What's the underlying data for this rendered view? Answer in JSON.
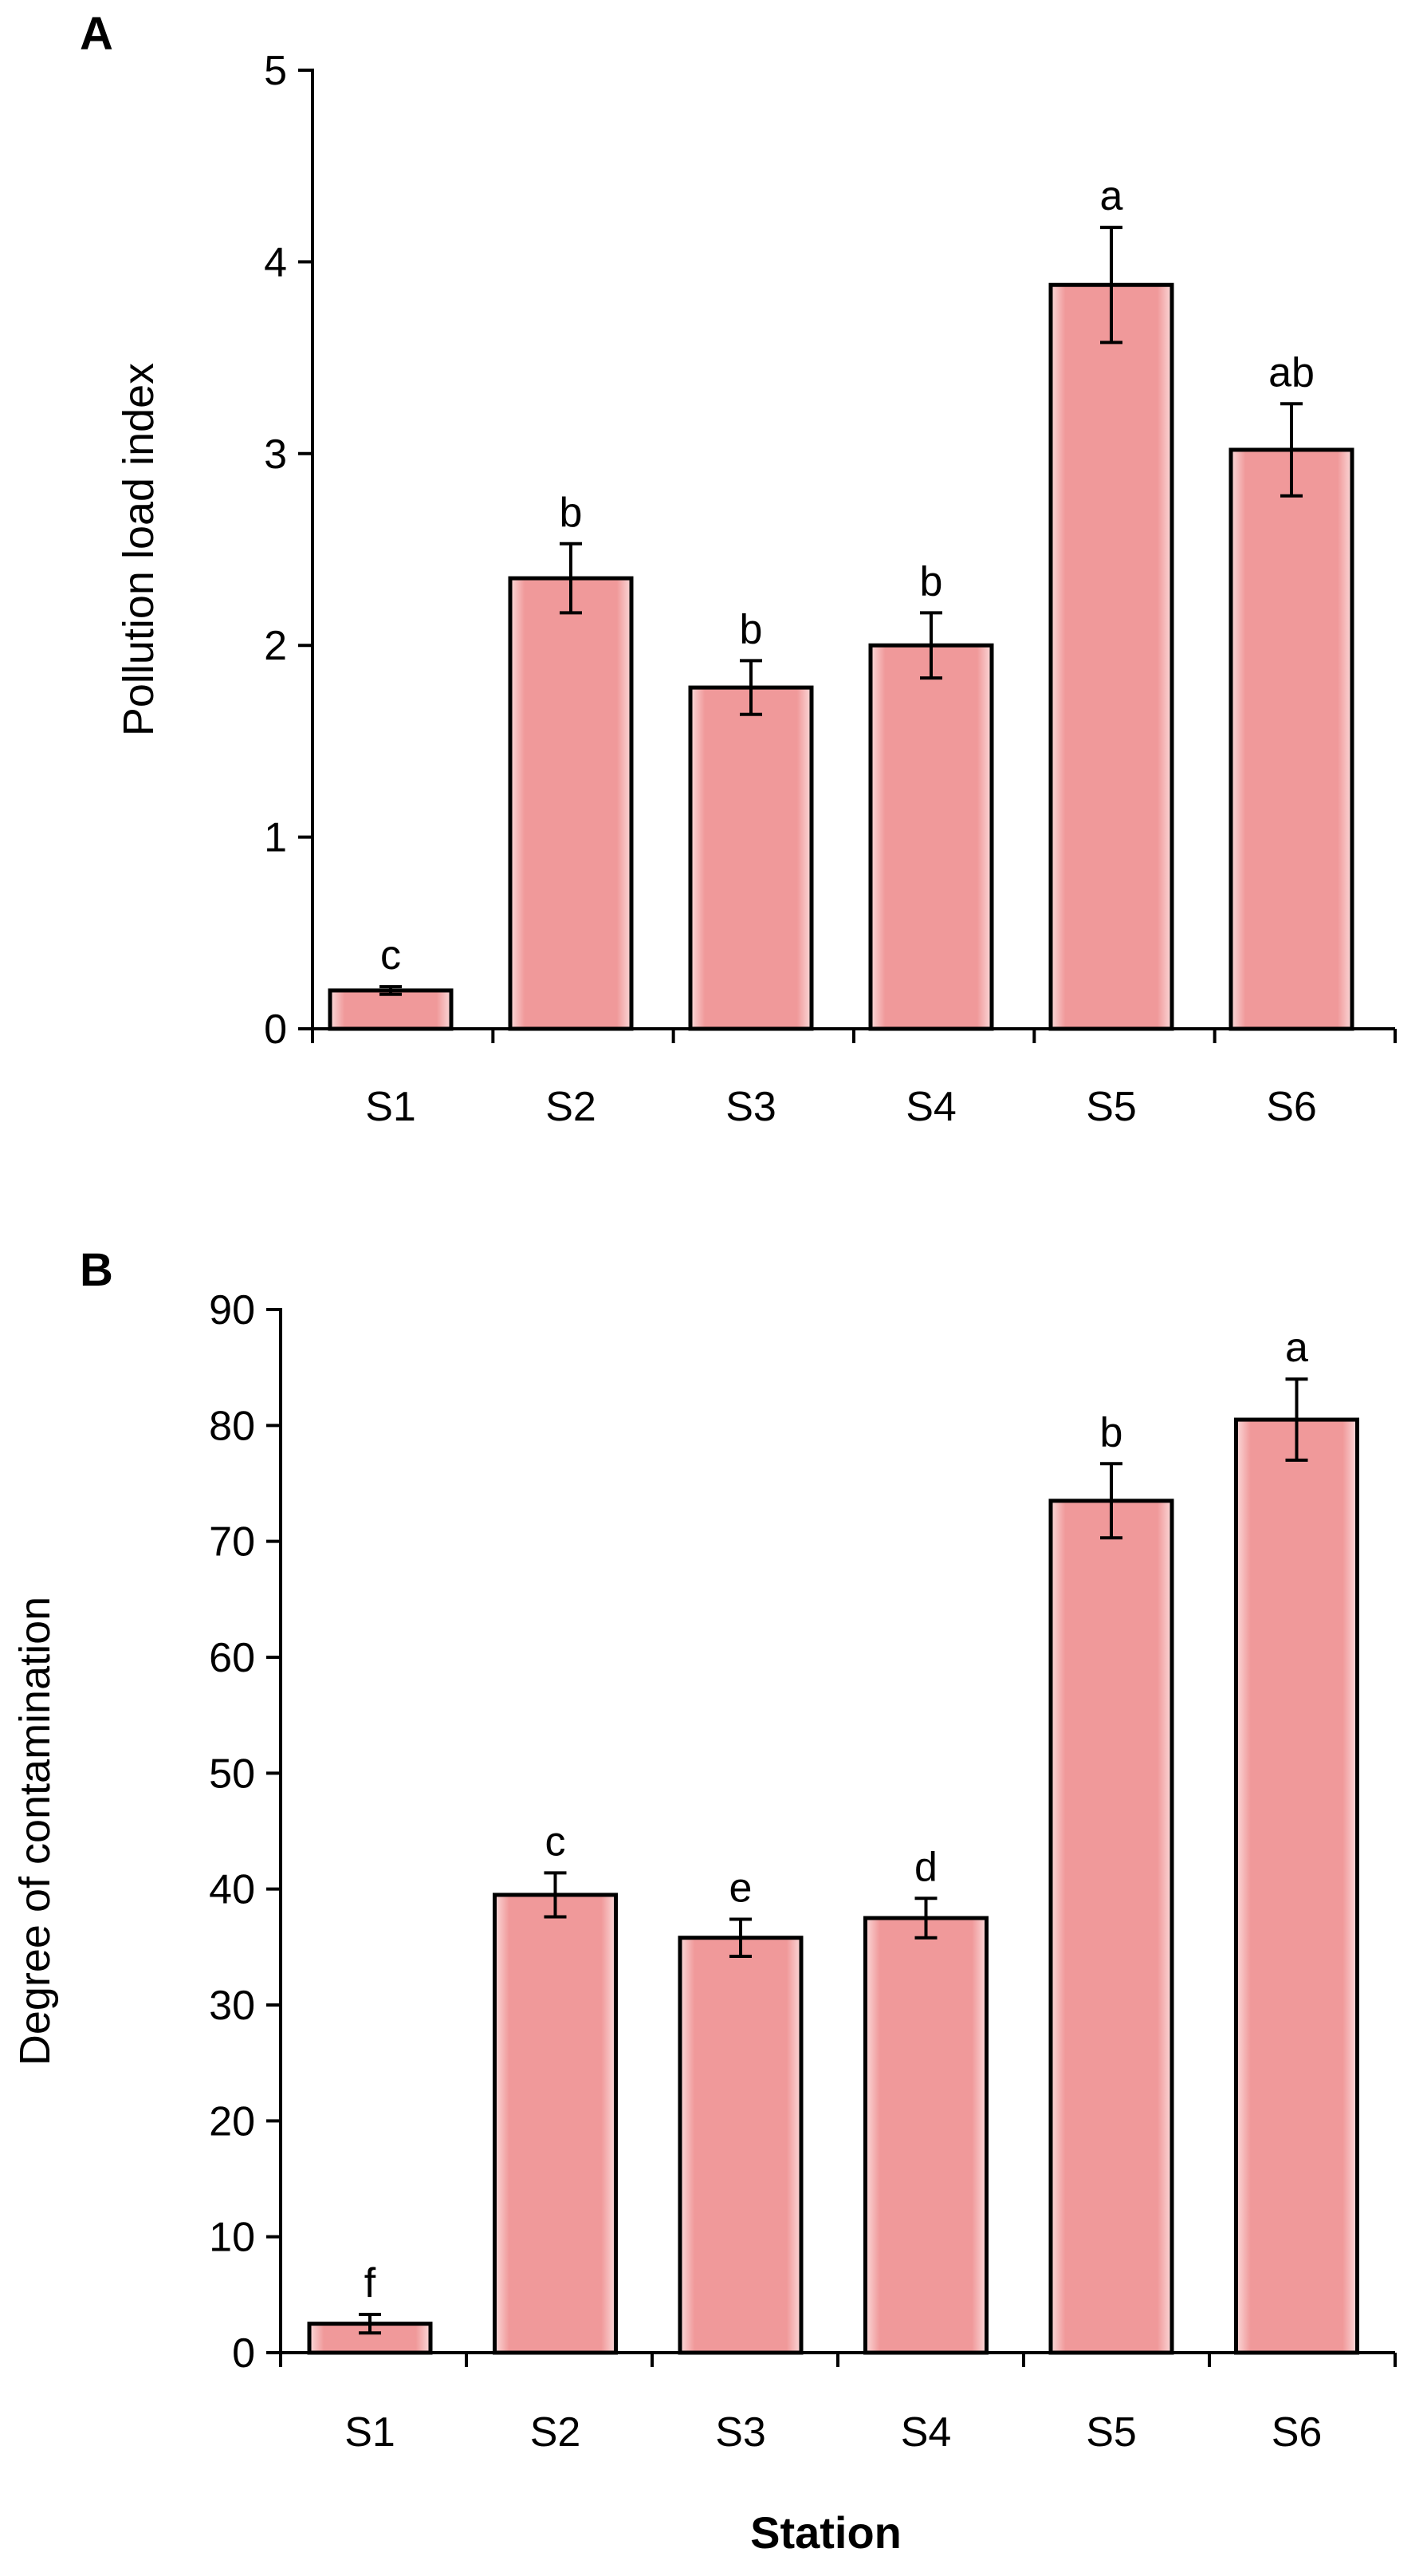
{
  "chart_data": [
    {
      "panel": "A",
      "type": "bar",
      "title": "",
      "xlabel": "",
      "ylabel": "Pollution load index",
      "ylim": [
        0,
        5
      ],
      "yticks": [
        "0",
        "1",
        "2",
        "3",
        "4",
        "5"
      ],
      "categories": [
        "S1",
        "S2",
        "S3",
        "S4",
        "S5",
        "S6"
      ],
      "values": [
        0.2,
        2.35,
        1.78,
        2.0,
        3.88,
        3.02
      ],
      "errors": [
        0.02,
        0.18,
        0.14,
        0.17,
        0.3,
        0.24
      ],
      "significance": [
        "c",
        "b",
        "b",
        "b",
        "a",
        "ab"
      ],
      "bar_color": "#f0999a",
      "grid": false
    },
    {
      "panel": "B",
      "type": "bar",
      "title": "",
      "xlabel": "Station",
      "ylabel": "Degree of contamination",
      "ylim": [
        0,
        90
      ],
      "yticks": [
        "0",
        "10",
        "20",
        "30",
        "40",
        "50",
        "60",
        "70",
        "80",
        "90"
      ],
      "categories": [
        "S1",
        "S2",
        "S3",
        "S4",
        "S5",
        "S6"
      ],
      "values": [
        2.5,
        39.5,
        35.8,
        37.5,
        73.5,
        80.5
      ],
      "errors": [
        0.8,
        1.9,
        1.6,
        1.7,
        3.2,
        3.5
      ],
      "significance": [
        "f",
        "c",
        "e",
        "d",
        "b",
        "a"
      ],
      "bar_color": "#f0999a",
      "grid": false
    }
  ]
}
